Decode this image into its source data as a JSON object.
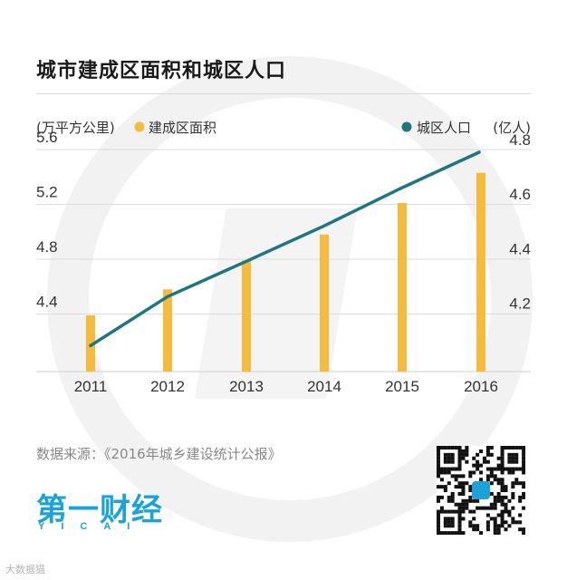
{
  "title": "城市建成区面积和城区人口",
  "chart_data": {
    "type": "bar+line",
    "categories": [
      "2011",
      "2012",
      "2013",
      "2014",
      "2015",
      "2016"
    ],
    "series": [
      {
        "name": "建成区面积",
        "kind": "bar",
        "axis": "left",
        "color": "#f5bb3c",
        "values": [
          4.39,
          4.58,
          4.79,
          4.98,
          5.21,
          5.43
        ]
      },
      {
        "name": "城区人口",
        "kind": "line",
        "axis": "right",
        "color": "#1f7580",
        "values": [
          4.09,
          4.27,
          4.4,
          4.53,
          4.67,
          4.8
        ]
      }
    ],
    "left_axis": {
      "unit_label": "(万平方公里)",
      "ticks": [
        "4.4",
        "4.8",
        "5.2",
        "5.6"
      ],
      "range": [
        3.98,
        5.6
      ]
    },
    "right_axis": {
      "unit_label": "(亿人)",
      "ticks": [
        "4.2",
        "4.4",
        "4.6",
        "4.8"
      ],
      "range": [
        3.995,
        4.81
      ]
    }
  },
  "source": "数据来源：《2016年城乡建设统计公报》",
  "logo": {
    "main": "第一财经",
    "sub": "YICAI"
  },
  "corner_mark": "大数据猫",
  "colors": {
    "bar": "#f5bb3c",
    "line": "#1f7580",
    "watermark": "#f2f2f2",
    "logo": "#1aa3d8"
  }
}
